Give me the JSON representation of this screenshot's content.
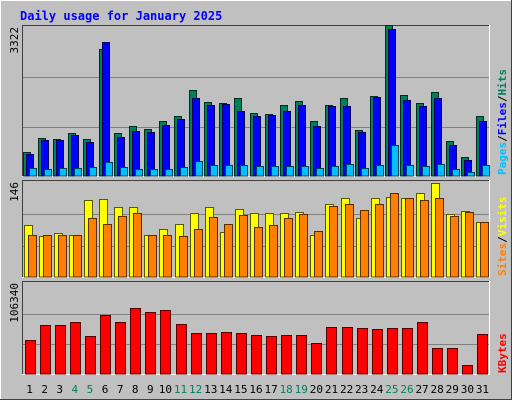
{
  "chart_data": {
    "type": "bar",
    "title": "Daily usage for January 2025",
    "colors": {
      "background": "#c0c0c0",
      "title": "#0000ff",
      "hits": "#00805c",
      "files": "#0000ff",
      "pages": "#00c0ff",
      "visits": "#ffff00",
      "sites": "#ff8000",
      "kbytes": "#ff0000",
      "weekend_day": "#00805c",
      "weekday": "#000000"
    },
    "x": [
      "1",
      "2",
      "3",
      "4",
      "5",
      "6",
      "7",
      "8",
      "9",
      "10",
      "11",
      "12",
      "13",
      "14",
      "15",
      "16",
      "17",
      "18",
      "19",
      "20",
      "21",
      "22",
      "23",
      "24",
      "25",
      "26",
      "27",
      "28",
      "29",
      "30",
      "31"
    ],
    "weekend_days": [
      "4",
      "5",
      "11",
      "12",
      "18",
      "19",
      "25",
      "26"
    ],
    "panels": [
      {
        "id": "hits-files-pages",
        "ymax_label": "3322",
        "ymax": 3322,
        "ylabel": [
          "Pages",
          "/",
          "Files",
          "/",
          "Hits"
        ],
        "series": [
          {
            "name": "Hits",
            "values": [
              540,
              850,
              840,
              960,
              820,
              2840,
              970,
              1120,
              1050,
              1230,
              1340,
              1930,
              1670,
              1630,
              1760,
              1420,
              1400,
              1600,
              1690,
              1240,
              1600,
              1750,
              1040,
              1800,
              3400,
              1810,
              1640,
              1890,
              780,
              430,
              1350
            ]
          },
          {
            "name": "Files",
            "values": [
              500,
              800,
              800,
              930,
              760,
              3000,
              880,
              1000,
              980,
              1150,
              1270,
              1750,
              1590,
              1610,
              1470,
              1350,
              1360,
              1470,
              1600,
              1130,
              1570,
              1580,
              990,
              1780,
              3300,
              1700,
              1580,
              1750,
              700,
              370,
              1240
            ]
          },
          {
            "name": "Pages",
            "values": [
              180,
              150,
              170,
              180,
              200,
              320,
              200,
              150,
              150,
              150,
              200,
              330,
              250,
              250,
              250,
              220,
              220,
              230,
              230,
              180,
              230,
              260,
              180,
              250,
              700,
              250,
              230,
              260,
              160,
              100,
              240
            ]
          }
        ]
      },
      {
        "id": "visits-sites",
        "ymax_label": "146",
        "ymax": 146,
        "ylabel": [
          "Sites",
          "/",
          "Visits"
        ],
        "series": [
          {
            "name": "Visits",
            "values": [
              80,
              63,
              68,
              65,
              120,
              121,
              108,
              109,
              65,
              75,
              83,
              100,
              108,
              70,
              105,
              100,
              100,
              100,
              101,
              66,
              113,
              123,
              92,
              123,
              125,
              122,
              130,
              146,
              98,
              103,
              86
            ]
          },
          {
            "name": "Sites",
            "values": [
              66,
              66,
              65,
              66,
              92,
              83,
              95,
              99,
              66,
              66,
              63,
              74,
              93,
              82,
              96,
              78,
              81,
              91,
              98,
              72,
              110,
              113,
              104,
              114,
              131,
              123,
              120,
              123,
              94,
              101,
              85
            ]
          }
        ]
      },
      {
        "id": "kbytes",
        "ymax_label": "106340",
        "ymax": 106340,
        "ylabel": [
          "KBytes"
        ],
        "series": [
          {
            "name": "KBytes",
            "values": [
              40000,
              58000,
              58000,
              62000,
              45000,
              70000,
              61000,
              78000,
              73000,
              76000,
              59000,
              49000,
              49000,
              50000,
              49000,
              46000,
              45000,
              46000,
              46000,
              37000,
              55000,
              56000,
              54000,
              53000,
              54000,
              54000,
              61000,
              31000,
              31000,
              11000,
              47000
            ]
          }
        ]
      }
    ]
  }
}
